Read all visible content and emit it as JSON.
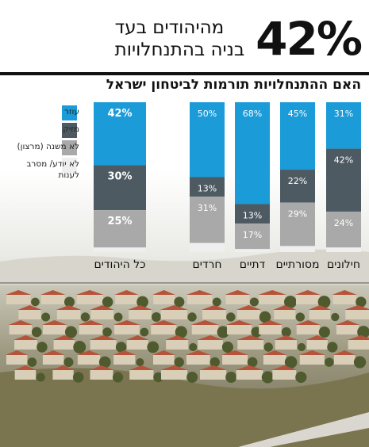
{
  "headline": {
    "percent": "42%",
    "line1": "מהיהודים בעד",
    "line2": "בניה בהתנחלויות"
  },
  "question": "האם ההתנחלויות תורמות לביטחון ישראל",
  "colors": {
    "contributes": "#1B9BD7",
    "harmful": "#4D5A62",
    "no_difference": "#A9A9A9",
    "dont_know": "#EFEFEF"
  },
  "chart_data": {
    "type": "bar",
    "stacked": true,
    "title": "האם ההתנחלויות תורמות לביטחון ישראל",
    "categories": [
      "כל היהודים",
      "חרדים",
      "דתיים",
      "מסורתיים",
      "חילונים"
    ],
    "series": [
      {
        "name": "עוזר",
        "color": "#1B9BD7",
        "values": [
          42,
          50,
          68,
          45,
          31
        ]
      },
      {
        "name": "מזיק",
        "color": "#4D5A62",
        "values": [
          30,
          13,
          13,
          22,
          42
        ]
      },
      {
        "name": "לא משנה (מרצון)",
        "color": "#A9A9A9",
        "values": [
          25,
          31,
          17,
          29,
          24
        ]
      },
      {
        "name": "לא יודע/ מסרב לענות",
        "color": "#EFEFEF",
        "values": [
          3,
          6,
          2,
          4,
          3
        ]
      }
    ],
    "data_labels": [
      [
        "42%",
        "50%",
        "68%",
        "45%",
        "31%"
      ],
      [
        "30%",
        "13%",
        "13%",
        "22%",
        "42%"
      ],
      [
        "25%",
        "31%",
        "17%",
        "29%",
        "24%"
      ],
      [
        "",
        "",
        "",
        "",
        ""
      ]
    ],
    "ylim": [
      0,
      100
    ],
    "grid": false,
    "legend_position": "left"
  }
}
